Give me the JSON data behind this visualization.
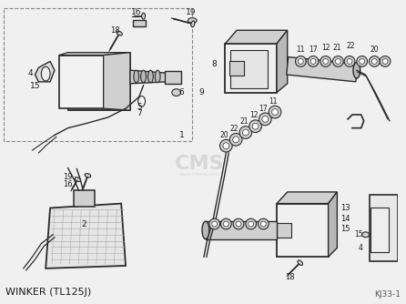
{
  "fig_width": 4.46,
  "fig_height": 3.34,
  "dpi": 100,
  "bg_color": "#f0f0f0",
  "line_color": "#2a2a2a",
  "fill_light": "#e8e8e8",
  "fill_mid": "#d0d0d0",
  "fill_dark": "#b8b8b8",
  "bottom_label": "WINKER (TL125J)",
  "bottom_ref": "KJ33-1",
  "text_color": "#1a1a1a",
  "watermark": "CMS",
  "watermark_color": "#c0c0c0"
}
